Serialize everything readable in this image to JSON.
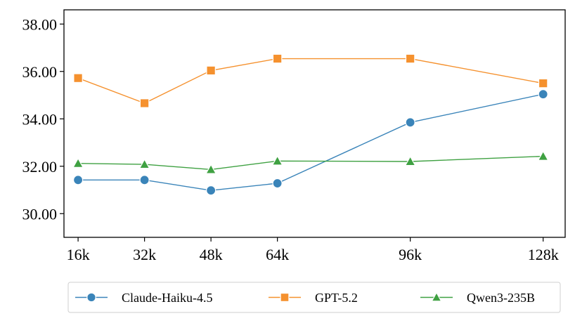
{
  "chart_data": {
    "type": "line",
    "title": "",
    "xlabel": "",
    "ylabel": "",
    "categories": [
      "16k",
      "32k",
      "48k",
      "64k",
      "96k",
      "128k"
    ],
    "x": [
      16,
      32,
      48,
      64,
      96,
      128
    ],
    "ylim": [
      29.0,
      38.6
    ],
    "yticks": [
      "30.00",
      "32.00",
      "34.00",
      "36.00",
      "38.00"
    ],
    "ytick_values": [
      30,
      32,
      34,
      36,
      38
    ],
    "grid": false,
    "legend_position": "bottom-center",
    "series": [
      {
        "name": "Claude-Haiku-4.5",
        "color": "#3a84b9",
        "marker": "circle",
        "values": [
          31.42,
          31.42,
          30.98,
          31.28,
          33.85,
          35.04
        ]
      },
      {
        "name": "GPT-5.2",
        "color": "#f5912e",
        "marker": "square",
        "values": [
          35.72,
          34.66,
          36.04,
          36.54,
          36.54,
          35.5
        ]
      },
      {
        "name": "Qwen3-235B",
        "color": "#3fa142",
        "marker": "triangle",
        "values": [
          32.12,
          32.08,
          31.86,
          32.22,
          32.2,
          32.42
        ]
      }
    ]
  }
}
